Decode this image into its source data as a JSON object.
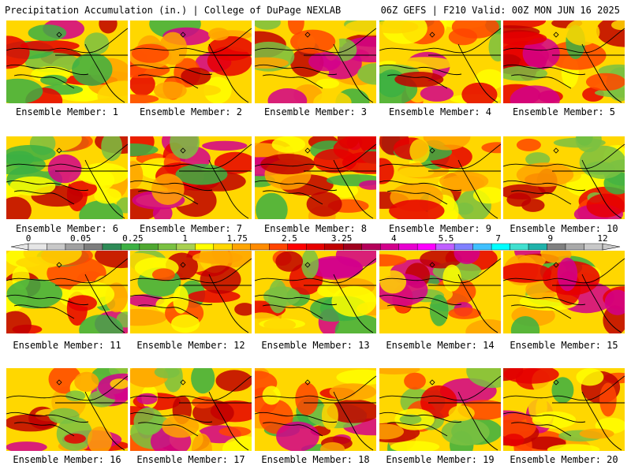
{
  "header": {
    "left": "Precipitation Accumulation (in.) | College of DuPage NEXLAB",
    "right": "06Z GEFS | F210 Valid: 00Z MON JUN 16 2025"
  },
  "members": [
    "Ensemble Member: 1",
    "Ensemble Member: 2",
    "Ensemble Member: 3",
    "Ensemble Member: 4",
    "Ensemble Member: 5",
    "Ensemble Member: 6",
    "Ensemble Member: 7",
    "Ensemble Member: 8",
    "Ensemble Member: 9",
    "Ensemble Member: 10",
    "Ensemble Member: 11",
    "Ensemble Member: 12",
    "Ensemble Member: 13",
    "Ensemble Member: 14",
    "Ensemble Member: 15",
    "Ensemble Member: 16",
    "Ensemble Member: 17",
    "Ensemble Member: 18",
    "Ensemble Member: 19",
    "Ensemble Member: 20"
  ],
  "colorbar": {
    "labels": [
      "0",
      "0.05",
      "0.25",
      "1",
      "1.75",
      "2.5",
      "3.25",
      "4",
      "5.5",
      "7",
      "9",
      "12"
    ],
    "colors": [
      "#e6e6e6",
      "#c8c8c8",
      "#a0a0a0",
      "#7d7d7d",
      "#2e8b57",
      "#3cb043",
      "#4fa832",
      "#7ac142",
      "#a8d050",
      "#ffff00",
      "#ffd700",
      "#ffa500",
      "#ff8c00",
      "#ff4500",
      "#ff0000",
      "#e60000",
      "#c00000",
      "#a0001e",
      "#b4005a",
      "#d2008c",
      "#e800d0",
      "#ff00ff",
      "#c060ff",
      "#8080ff",
      "#40c0ff",
      "#00ffff",
      "#40e0d0",
      "#20b2aa",
      "#808080",
      "#a9a9a9",
      "#c8c8c8"
    ]
  }
}
